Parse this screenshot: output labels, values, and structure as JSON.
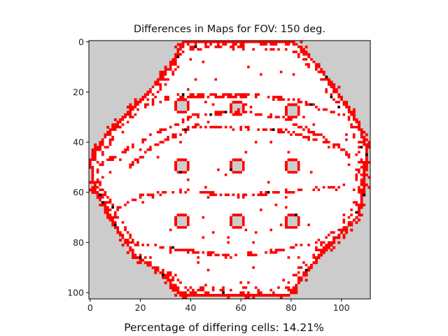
{
  "chart_data": {
    "type": "heatmap",
    "title": "Differences in Maps for FOV: 150 deg.",
    "caption": "Percentage of differing cells: 14.21%",
    "xlabel": "",
    "ylabel": "",
    "xlim": [
      0,
      111
    ],
    "ylim": [
      102,
      0
    ],
    "x_ticks": [
      0,
      20,
      40,
      60,
      80,
      100
    ],
    "y_ticks": [
      0,
      20,
      40,
      60,
      80,
      100
    ],
    "grid": false,
    "colors": {
      "unexplored": "#cccccc",
      "free": "#ffffff",
      "differing": "#ff0000",
      "obstacle": "#000000"
    },
    "differing_percentage": 14.21
  }
}
